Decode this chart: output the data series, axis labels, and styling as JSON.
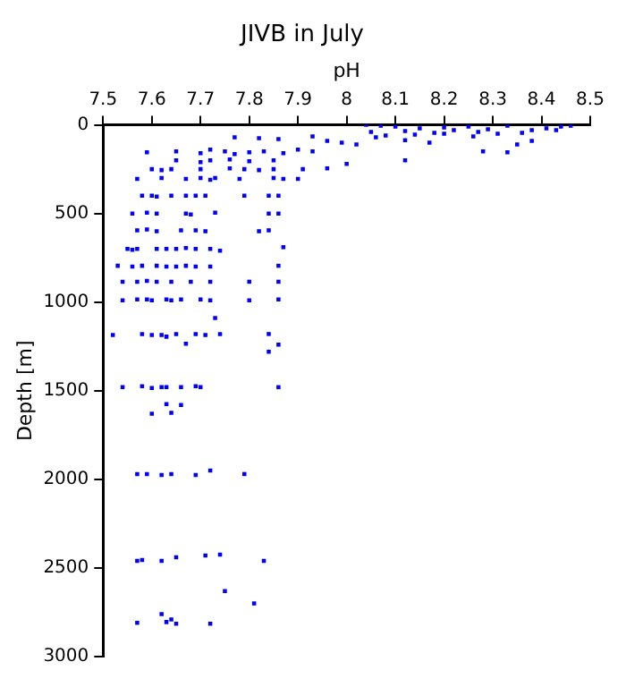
{
  "chart_data": {
    "type": "scatter",
    "title": "JIVB in July",
    "xlabel": "pH",
    "ylabel": "Depth [m]",
    "xlim": [
      7.5,
      8.5
    ],
    "xticks": [
      7.5,
      7.6,
      7.7,
      7.8,
      7.9,
      8,
      8.1,
      8.2,
      8.3,
      8.4,
      8.5
    ],
    "ylim": [
      3000,
      0
    ],
    "yticks": [
      0,
      500,
      1000,
      1500,
      2000,
      2500,
      3000
    ],
    "grid": false,
    "legend": false,
    "marker": "square",
    "series": [
      {
        "color": "#0000ff",
        "x": [
          8.04,
          8.07,
          8.1,
          8.15,
          8.2,
          8.25,
          8.29,
          8.33,
          8.38,
          8.41,
          8.44,
          8.46,
          8.05,
          8.12,
          8.18,
          8.22,
          8.27,
          8.31,
          8.36,
          8.43,
          8.08,
          8.14,
          8.2,
          8.26,
          8.06,
          8.12,
          8.17,
          8.28,
          8.33,
          8.35,
          8.38,
          7.99,
          8.0,
          8.12,
          7.77,
          7.82,
          7.86,
          7.93,
          7.96,
          8.02,
          7.59,
          7.65,
          7.7,
          7.72,
          7.75,
          7.77,
          7.8,
          7.83,
          7.87,
          7.9,
          7.93,
          7.65,
          7.7,
          7.72,
          7.76,
          7.8,
          7.85,
          7.6,
          7.62,
          7.64,
          7.7,
          7.76,
          7.79,
          7.82,
          7.85,
          7.91,
          7.96,
          7.57,
          7.62,
          7.67,
          7.7,
          7.72,
          7.73,
          7.78,
          7.85,
          7.87,
          7.9,
          7.58,
          7.6,
          7.61,
          7.64,
          7.67,
          7.69,
          7.71,
          7.79,
          7.84,
          7.86,
          7.56,
          7.59,
          7.61,
          7.67,
          7.68,
          7.73,
          7.84,
          7.86,
          7.57,
          7.59,
          7.61,
          7.66,
          7.69,
          7.71,
          7.82,
          7.84,
          7.55,
          7.56,
          7.57,
          7.61,
          7.63,
          7.65,
          7.67,
          7.69,
          7.72,
          7.74,
          7.87,
          7.53,
          7.56,
          7.58,
          7.61,
          7.63,
          7.65,
          7.67,
          7.69,
          7.72,
          7.86,
          7.54,
          7.57,
          7.59,
          7.61,
          7.64,
          7.68,
          7.72,
          7.8,
          7.86,
          7.54,
          7.57,
          7.59,
          7.6,
          7.63,
          7.64,
          7.66,
          7.7,
          7.72,
          7.8,
          7.86,
          7.73,
          7.52,
          7.58,
          7.6,
          7.62,
          7.63,
          7.65,
          7.69,
          7.71,
          7.74,
          7.84,
          7.67,
          7.86,
          7.84,
          7.54,
          7.58,
          7.6,
          7.62,
          7.63,
          7.66,
          7.69,
          7.7,
          7.86,
          7.63,
          7.66,
          7.6,
          7.64,
          7.57,
          7.59,
          7.62,
          7.64,
          7.69,
          7.72,
          7.79,
          7.57,
          7.58,
          7.62,
          7.65,
          7.71,
          7.74,
          7.83,
          7.75,
          7.81,
          7.62,
          7.57,
          7.63,
          7.64,
          7.65,
          7.72
        ],
        "values": [
          0,
          5,
          10,
          20,
          15,
          10,
          25,
          5,
          30,
          20,
          10,
          5,
          40,
          35,
          45,
          30,
          40,
          50,
          45,
          30,
          60,
          55,
          50,
          65,
          70,
          86,
          100,
          150,
          155,
          110,
          90,
          100,
          220,
          200,
          70,
          75,
          80,
          65,
          90,
          110,
          155,
          150,
          160,
          140,
          150,
          165,
          155,
          150,
          160,
          140,
          150,
          200,
          210,
          200,
          195,
          205,
          200,
          250,
          255,
          250,
          250,
          245,
          250,
          255,
          250,
          250,
          245,
          305,
          300,
          305,
          300,
          310,
          300,
          305,
          300,
          305,
          305,
          400,
          400,
          405,
          400,
          400,
          400,
          400,
          400,
          400,
          400,
          500,
          495,
          500,
          500,
          505,
          495,
          500,
          500,
          595,
          590,
          600,
          595,
          595,
          600,
          600,
          595,
          700,
          705,
          700,
          700,
          700,
          700,
          695,
          700,
          700,
          710,
          690,
          795,
          800,
          795,
          795,
          800,
          800,
          795,
          800,
          800,
          795,
          885,
          885,
          880,
          885,
          885,
          885,
          885,
          885,
          885,
          990,
          985,
          985,
          990,
          985,
          990,
          985,
          985,
          990,
          990,
          985,
          1090,
          1185,
          1180,
          1185,
          1185,
          1195,
          1180,
          1180,
          1185,
          1180,
          1180,
          1235,
          1240,
          1280,
          1480,
          1475,
          1485,
          1480,
          1480,
          1480,
          1475,
          1480,
          1480,
          1575,
          1580,
          1630,
          1625,
          1970,
          1970,
          1975,
          1970,
          1975,
          1950,
          1970,
          2460,
          2455,
          2460,
          2440,
          2430,
          2425,
          2460,
          2630,
          2700,
          2760,
          2810,
          2805,
          2790,
          2815,
          2815
        ]
      }
    ]
  }
}
